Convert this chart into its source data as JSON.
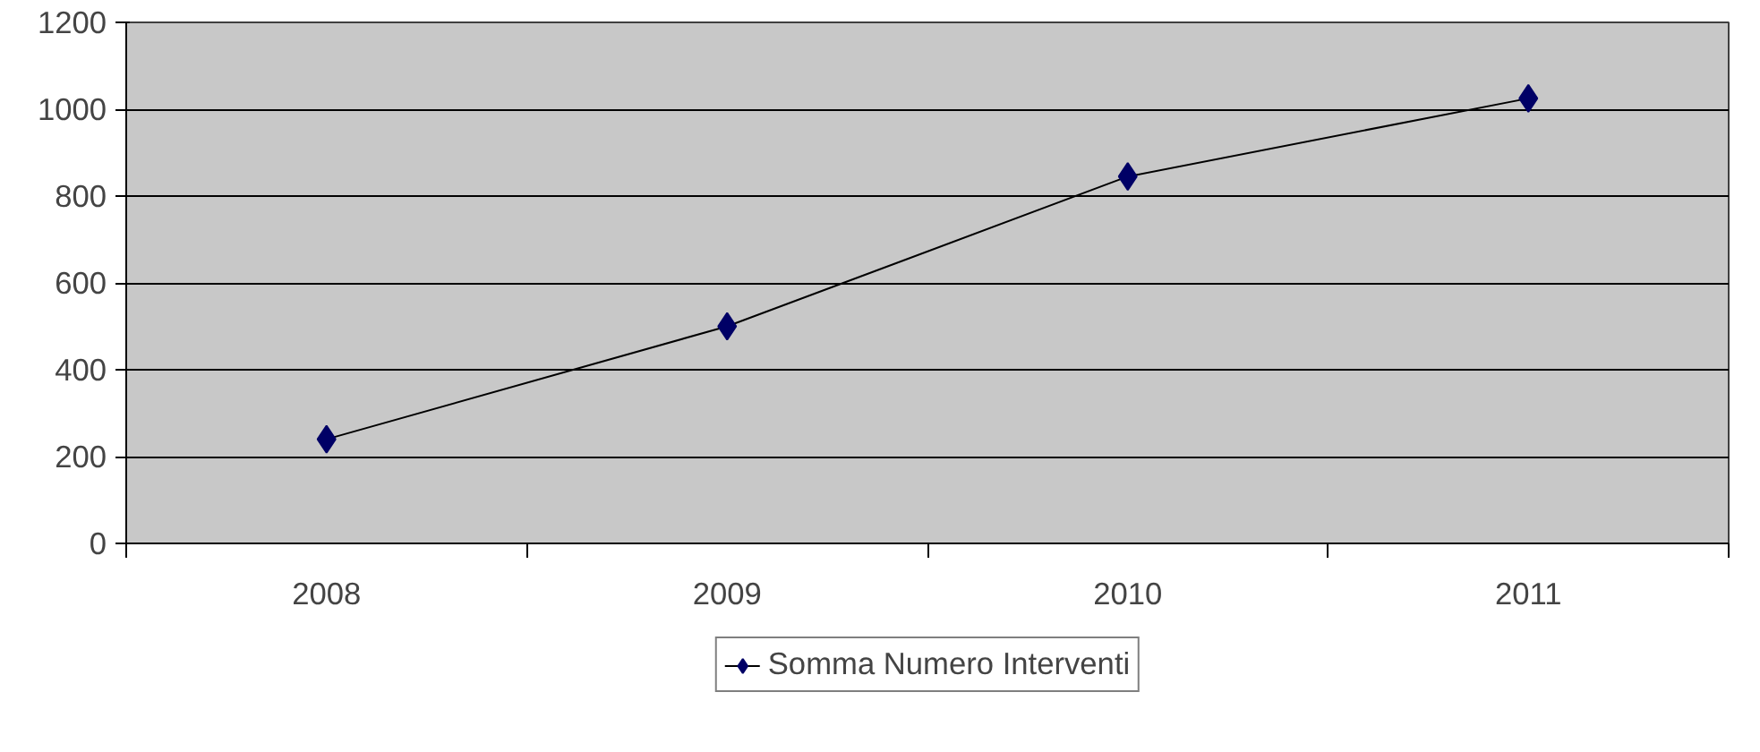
{
  "chart_data": {
    "type": "line",
    "categories": [
      "2008",
      "2009",
      "2010",
      "2011"
    ],
    "series": [
      {
        "name": "Somma Numero Interventi",
        "color": "#000066",
        "values": [
          240,
          500,
          845,
          1025
        ]
      }
    ],
    "ylim": [
      0,
      1200
    ],
    "yticks": [
      0,
      200,
      400,
      600,
      800,
      1000,
      1200
    ],
    "grid": "y",
    "legend": "bottom",
    "marker": "diamond",
    "line_style": "solid"
  }
}
